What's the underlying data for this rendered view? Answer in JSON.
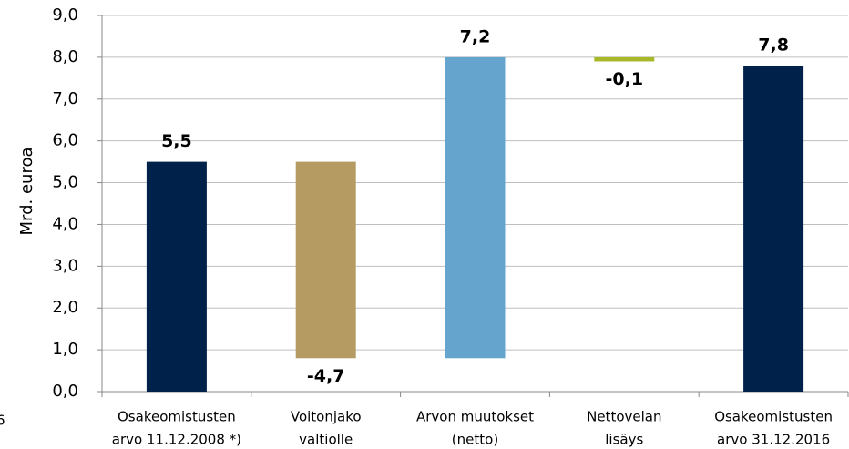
{
  "chart_data": {
    "type": "waterfall",
    "y_label": "Mrd. euroa",
    "categories": [
      [
        "Osakeomistusten",
        "arvo 11.12.2008 *)"
      ],
      [
        "Voitonjako",
        "valtiolle"
      ],
      [
        "Arvon muutokset",
        "(netto)"
      ],
      [
        "Nettovelan",
        "lisäys"
      ],
      [
        "Osakeomistusten",
        "arvo 31.12.2016"
      ]
    ],
    "measure": [
      "absolute",
      "relative",
      "relative",
      "relative",
      "total"
    ],
    "values": [
      5.5,
      -4.7,
      7.2,
      -0.1,
      7.8
    ],
    "value_labels": [
      "5,5",
      "-4,7",
      "7,2",
      "-0,1",
      "7,8"
    ],
    "colors": [
      "#00224a",
      "#b59b62",
      "#65a4cd",
      "#a7b92a",
      "#00224a"
    ],
    "ylim": [
      0,
      9
    ],
    "yticks": [
      {
        "value": 0,
        "label": "0,0"
      },
      {
        "value": 1,
        "label": "1,0"
      },
      {
        "value": 2,
        "label": "2,0"
      },
      {
        "value": 3,
        "label": "3,0"
      },
      {
        "value": 4,
        "label": "4,0"
      },
      {
        "value": 5,
        "label": "5,0"
      },
      {
        "value": 6,
        "label": "6,0"
      },
      {
        "value": 7,
        "label": "7,0"
      },
      {
        "value": 8,
        "label": "8,0"
      },
      {
        "value": 9,
        "label": "9,0"
      }
    ],
    "grid": true,
    "side_note": "6"
  }
}
